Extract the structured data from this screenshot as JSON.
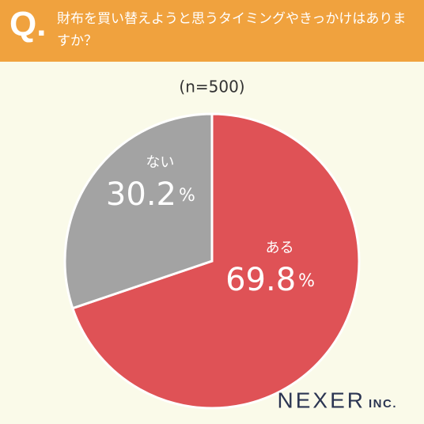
{
  "question_label": "Q.",
  "chart_data": {
    "type": "pie",
    "title": "財布を買い替えようと思うタイミングやきっかけはありますか？",
    "subtitle": "(n=500)",
    "categories": [
      "ある",
      "ない"
    ],
    "values": [
      69.8,
      30.2
    ],
    "unit": "%",
    "colors": [
      "#df5256",
      "#a3a3a3"
    ]
  },
  "logo": {
    "name": "NEXER",
    "suffix": "INC."
  }
}
